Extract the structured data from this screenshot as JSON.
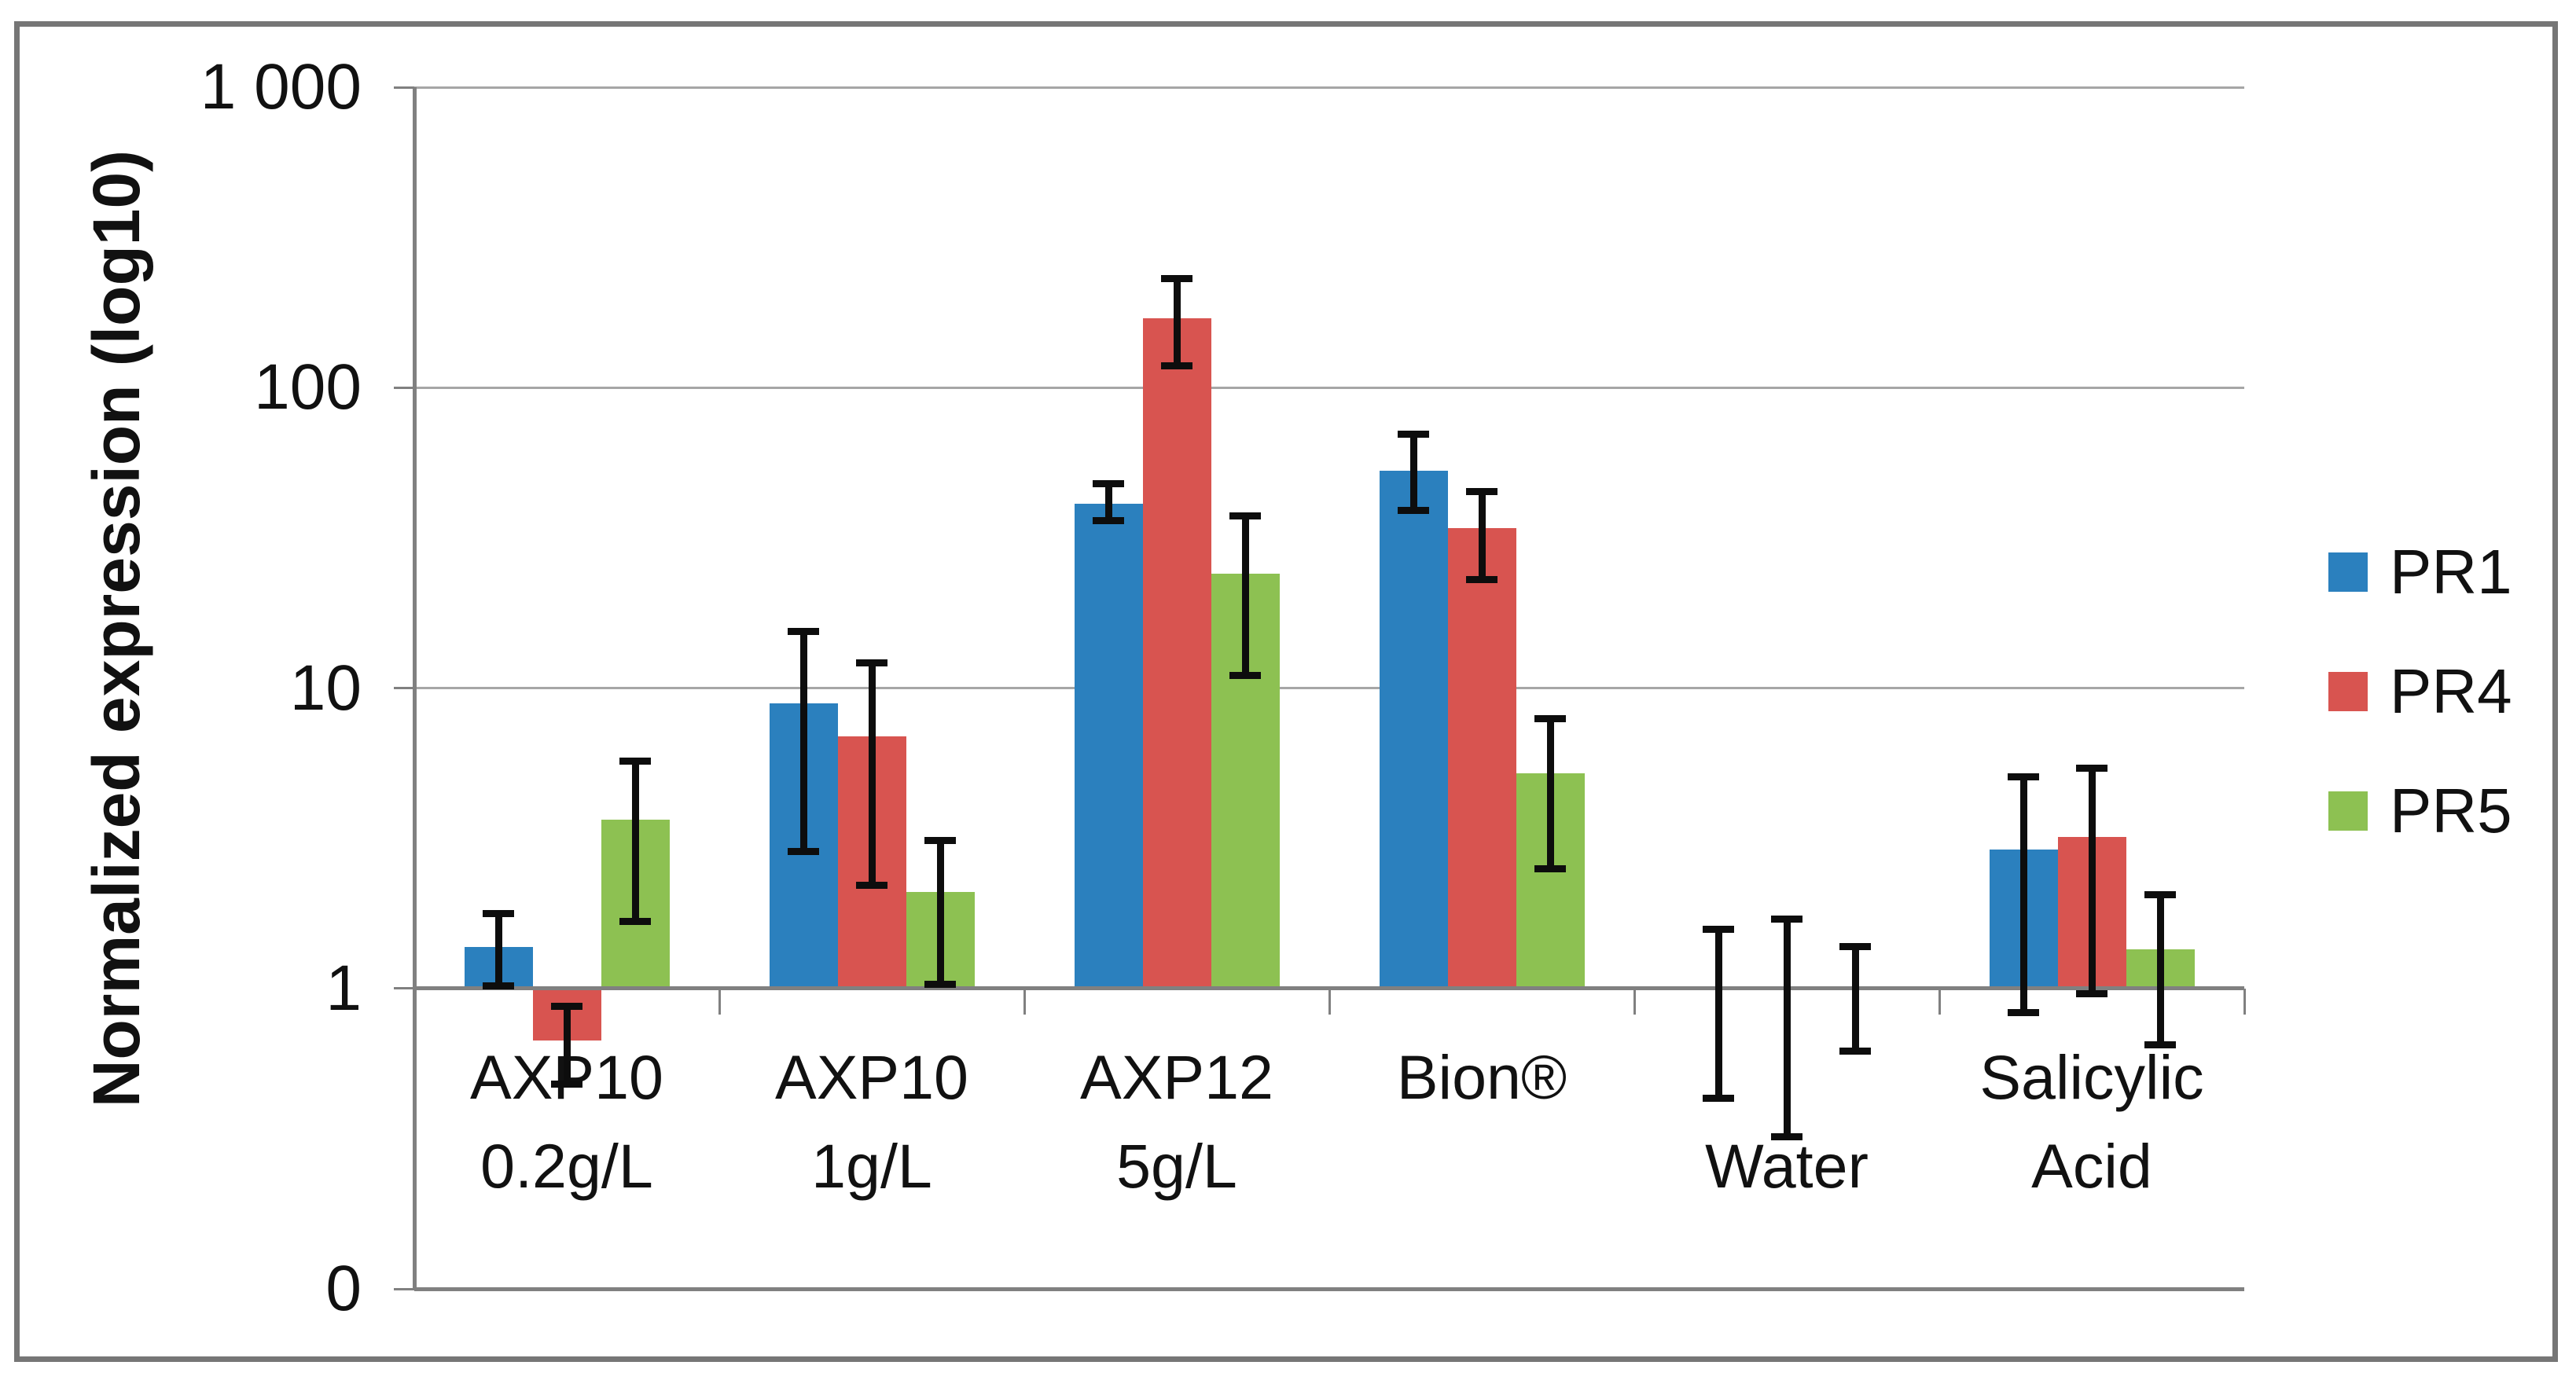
{
  "colors": {
    "background": "#FFFFFF",
    "frame_border": "#767676",
    "grid": "#A6A6A6",
    "axis": "#808080",
    "error_bar": "#0D0D0D",
    "pr1_blue": "#2B80BE",
    "pr4_red": "#D85450",
    "pr5_green": "#8DC152"
  },
  "legend": {
    "position": "right",
    "items": [
      {
        "label": "PR1",
        "color": "#2B80BE"
      },
      {
        "label": "PR4",
        "color": "#D85450"
      },
      {
        "label": "PR5",
        "color": "#8DC152"
      }
    ]
  },
  "chart_data": {
    "type": "bar",
    "scale": "log10",
    "title": "",
    "xlabel": "",
    "ylabel": "Normalized expression (log10)",
    "ylim": [
      0.1,
      1000
    ],
    "baseline": 1,
    "grid": true,
    "legend_position": "right",
    "yticks": [
      {
        "value": 1000,
        "label": "1 000"
      },
      {
        "value": 100,
        "label": "100"
      },
      {
        "value": 10,
        "label": "10"
      },
      {
        "value": 1,
        "label": "1"
      },
      {
        "value": 0.1,
        "label": "0"
      }
    ],
    "categories": [
      {
        "label": "AXP10 0.2g/L",
        "line1": "AXP10",
        "line2": "0.2g/L"
      },
      {
        "label": "AXP10 1g/L",
        "line1": "AXP10",
        "line2": "1g/L"
      },
      {
        "label": "AXP12 5g/L",
        "line1": "AXP12",
        "line2": "5g/L"
      },
      {
        "label": "Bion®",
        "line1": "Bion®",
        "line2": ""
      },
      {
        "label": "Water",
        "line1": "",
        "line2": "Water"
      },
      {
        "label": "Salicylic Acid",
        "line1": "Salicylic",
        "line2": "Acid"
      }
    ],
    "series": [
      {
        "name": "PR1",
        "color": "#2B80BE",
        "values": [
          1.37,
          8.9,
          41,
          53,
          1.0,
          2.9
        ],
        "error_low": [
          1.02,
          2.85,
          36,
          39,
          0.43,
          0.83
        ],
        "error_high": [
          1.77,
          15.4,
          48,
          70,
          1.57,
          5.05
        ]
      },
      {
        "name": "PR4",
        "color": "#D85450",
        "values": [
          0.67,
          6.9,
          170,
          34,
          1.0,
          3.2
        ],
        "error_low": [
          0.48,
          2.2,
          118,
          23,
          0.32,
          0.96
        ],
        "error_high": [
          0.87,
          12.1,
          230,
          45,
          1.7,
          5.4
        ]
      },
      {
        "name": "PR5",
        "color": "#8DC152",
        "values": [
          3.65,
          2.1,
          24,
          5.2,
          1.0,
          1.35
        ],
        "error_low": [
          1.67,
          1.03,
          11,
          2.5,
          0.62,
          0.65
        ],
        "error_high": [
          5.7,
          3.1,
          37.5,
          7.9,
          1.38,
          2.05
        ]
      }
    ]
  }
}
